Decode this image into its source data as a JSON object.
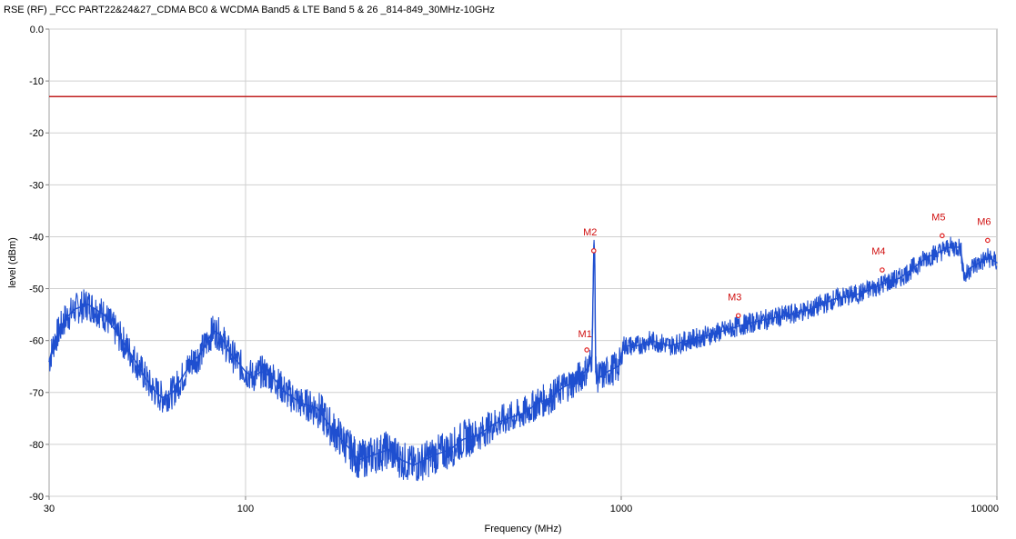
{
  "chart_data": {
    "type": "line",
    "title": "RSE (RF) _FCC PART22&24&27_CDMA BC0 & WCDMA Band5 & LTE Band 5 & 26 _814-849_30MHz-10GHz",
    "xlabel": "Frequency (MHz)",
    "ylabel": "level (dBm)",
    "xscale": "log",
    "xlim": [
      30,
      10000
    ],
    "ylim": [
      -90,
      0
    ],
    "x_ticks": [
      "30",
      "100",
      "1000",
      "10000"
    ],
    "y_ticks": [
      "0.0",
      "-10",
      "-20",
      "-30",
      "-40",
      "-50",
      "-60",
      "-70",
      "-80",
      "-90"
    ],
    "grid": true,
    "limit_line": {
      "value": -13,
      "color": "#c02020"
    },
    "series": [
      {
        "color": "#1f4fd0",
        "x": [
          30,
          31,
          33,
          35,
          38,
          42,
          47,
          52,
          56,
          60,
          64,
          68,
          72,
          75,
          78,
          82,
          86,
          90,
          95,
          100,
          105,
          110,
          118,
          128,
          140,
          155,
          170,
          185,
          200,
          220,
          240,
          260,
          280,
          300,
          320,
          350,
          380,
          420,
          460,
          500,
          550,
          600,
          650,
          700,
          750,
          800,
          820,
          836,
          845,
          850,
          855,
          860,
          880,
          920,
          980,
          1000,
          1010,
          1100,
          1200,
          1350,
          1500,
          1700,
          1900,
          2100,
          2400,
          2800,
          3200,
          3700,
          4300,
          5000,
          5500,
          6000,
          6500,
          7000,
          7500,
          8000,
          8200,
          8500,
          9000,
          9500,
          10000
        ],
        "y": [
          -64,
          -60,
          -56,
          -54,
          -53,
          -55,
          -60,
          -65,
          -69,
          -71,
          -70,
          -67,
          -64,
          -63,
          -61,
          -58,
          -59,
          -62,
          -64,
          -66,
          -67,
          -66,
          -67,
          -70,
          -72,
          -73,
          -77,
          -80,
          -83,
          -82,
          -81,
          -83,
          -84,
          -83,
          -82,
          -81,
          -79,
          -78,
          -76,
          -75,
          -74,
          -72,
          -71,
          -69,
          -68,
          -66,
          -65,
          -63,
          -43,
          -43,
          -66,
          -67,
          -67,
          -66,
          -65,
          -64,
          -61,
          -61,
          -60,
          -61,
          -60,
          -59,
          -58,
          -57,
          -56,
          -55,
          -54,
          -52,
          -51,
          -49,
          -48,
          -46,
          -44,
          -43,
          -42,
          -42,
          -48,
          -46,
          -45,
          -44,
          -45
        ]
      }
    ],
    "markers": [
      {
        "label": "M1",
        "x": 810,
        "y": -61.8
      },
      {
        "label": "M2",
        "x": 845,
        "y": -42.7
      },
      {
        "label": "M3",
        "x": 2050,
        "y": -55.2
      },
      {
        "label": "M4",
        "x": 4950,
        "y": -46.4
      },
      {
        "label": "M5",
        "x": 7150,
        "y": -39.8
      },
      {
        "label": "M6",
        "x": 9450,
        "y": -40.7
      }
    ]
  }
}
